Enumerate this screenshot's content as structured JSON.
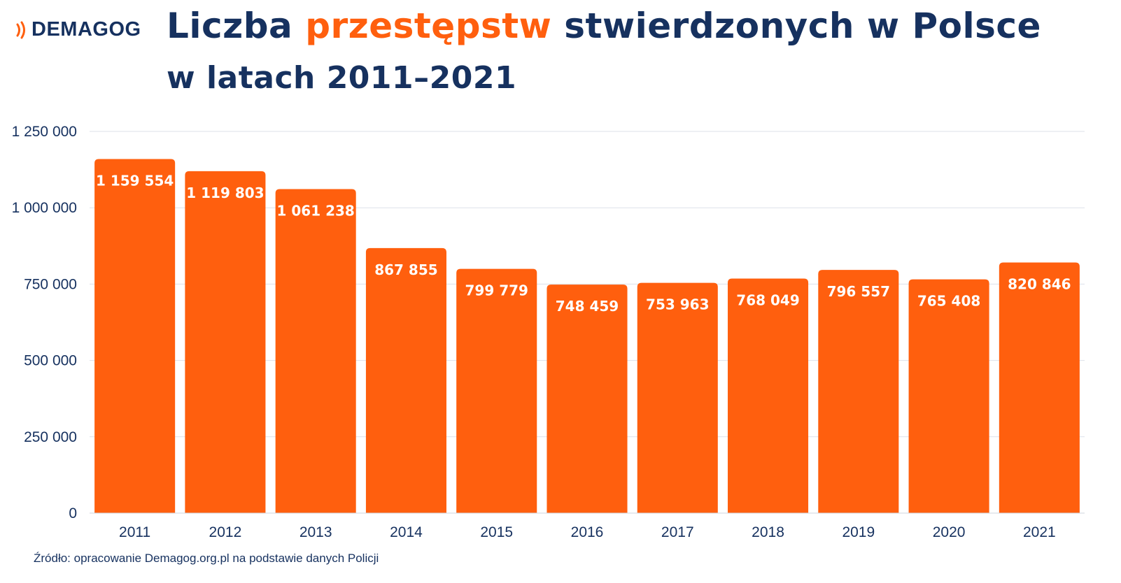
{
  "brand": {
    "name": "DEMAGOG",
    "icon": "radio-waves-icon",
    "accent": "#ff5f0e",
    "dark": "#16315f"
  },
  "header": {
    "title_part1": "Liczba ",
    "title_highlight": "przestępstw",
    "title_part2": " stwierdzonych w Polsce",
    "subtitle": "w latach 2011–2021"
  },
  "chart_data": {
    "type": "bar",
    "categories": [
      "2011",
      "2012",
      "2013",
      "2014",
      "2015",
      "2016",
      "2017",
      "2018",
      "2019",
      "2020",
      "2021"
    ],
    "values": [
      1159554,
      1119803,
      1061238,
      867855,
      799779,
      748459,
      753963,
      768049,
      796557,
      765408,
      820846
    ],
    "value_labels": [
      "1 159 554",
      "1 119 803",
      "1 061 238",
      "867 855",
      "799 779",
      "748 459",
      "753 963",
      "768 049",
      "796 557",
      "765 408",
      "820 846"
    ],
    "ylim": [
      0,
      1250000
    ],
    "yticks": [
      0,
      250000,
      500000,
      750000,
      1000000,
      1250000
    ],
    "ytick_labels": [
      "0",
      "250 000",
      "500 000",
      "750 000",
      "1 000 000",
      "1 250 000"
    ],
    "bar_color": "#ff5f0e",
    "grid": true,
    "xlabel": "",
    "ylabel": ""
  },
  "footer": {
    "source": "Źródło: opracowanie Demagog.org.pl na podstawie danych Policji"
  }
}
